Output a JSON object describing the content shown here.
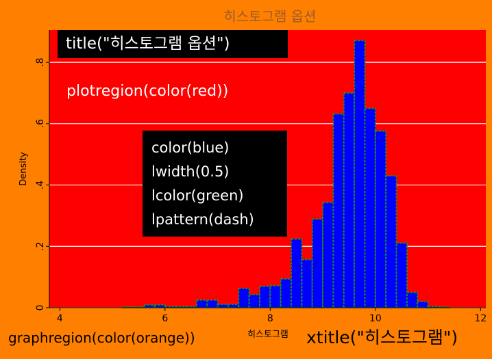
{
  "chart_data": {
    "type": "bar",
    "title": "히스토그램 옵션",
    "xlabel": "히스토그램",
    "ylabel": "Density",
    "xlim": [
      3.8,
      12.1
    ],
    "ylim": [
      0,
      0.905
    ],
    "xticks": [
      4,
      6,
      8,
      10,
      12
    ],
    "yticks": [
      0,
      0.2,
      0.4,
      0.6,
      0.8
    ],
    "ytick_labels": [
      "0",
      ".2",
      ".4",
      ".6",
      ".8"
    ],
    "grid": true,
    "bin_width": 0.2,
    "bins": [
      {
        "x0": 5.2,
        "density": 0.002
      },
      {
        "x0": 5.4,
        "density": 0.002
      },
      {
        "x0": 5.6,
        "density": 0.009
      },
      {
        "x0": 5.8,
        "density": 0.009
      },
      {
        "x0": 6.0,
        "density": 0.004
      },
      {
        "x0": 6.2,
        "density": 0.004
      },
      {
        "x0": 6.4,
        "density": 0.004
      },
      {
        "x0": 6.6,
        "density": 0.025
      },
      {
        "x0": 6.8,
        "density": 0.025
      },
      {
        "x0": 7.0,
        "density": 0.011
      },
      {
        "x0": 7.2,
        "density": 0.011
      },
      {
        "x0": 7.4,
        "density": 0.063
      },
      {
        "x0": 7.6,
        "density": 0.043
      },
      {
        "x0": 7.8,
        "density": 0.07
      },
      {
        "x0": 8.0,
        "density": 0.072
      },
      {
        "x0": 8.2,
        "density": 0.094
      },
      {
        "x0": 8.4,
        "density": 0.224
      },
      {
        "x0": 8.6,
        "density": 0.157
      },
      {
        "x0": 8.8,
        "density": 0.289
      },
      {
        "x0": 9.0,
        "density": 0.343
      },
      {
        "x0": 9.2,
        "density": 0.632
      },
      {
        "x0": 9.4,
        "density": 0.7
      },
      {
        "x0": 9.6,
        "density": 0.871
      },
      {
        "x0": 9.8,
        "density": 0.65
      },
      {
        "x0": 10.0,
        "density": 0.576
      },
      {
        "x0": 10.2,
        "density": 0.43
      },
      {
        "x0": 10.4,
        "density": 0.211
      },
      {
        "x0": 10.6,
        "density": 0.05
      },
      {
        "x0": 10.8,
        "density": 0.02
      },
      {
        "x0": 11.0,
        "density": 0.004
      },
      {
        "x0": 11.2,
        "density": 0.002
      }
    ]
  },
  "colors": {
    "graph_background": "#ff8000",
    "plot_background": "#ff0000",
    "bar_fill": "#0000ff",
    "bar_outline": "#1e8c1e",
    "grid": "#ffffff"
  },
  "annotations": {
    "title_option": "title(\"히스토그램 옵션\")",
    "plotregion_option": "plotregion(color(red))",
    "bar_options": [
      "color(blue)",
      "lwidth(0.5)",
      "lcolor(green)",
      "lpattern(dash)"
    ],
    "graphregion_option": "graphregion(color(orange))",
    "xtitle_option": "xtitle(\"히스토그램\")"
  }
}
